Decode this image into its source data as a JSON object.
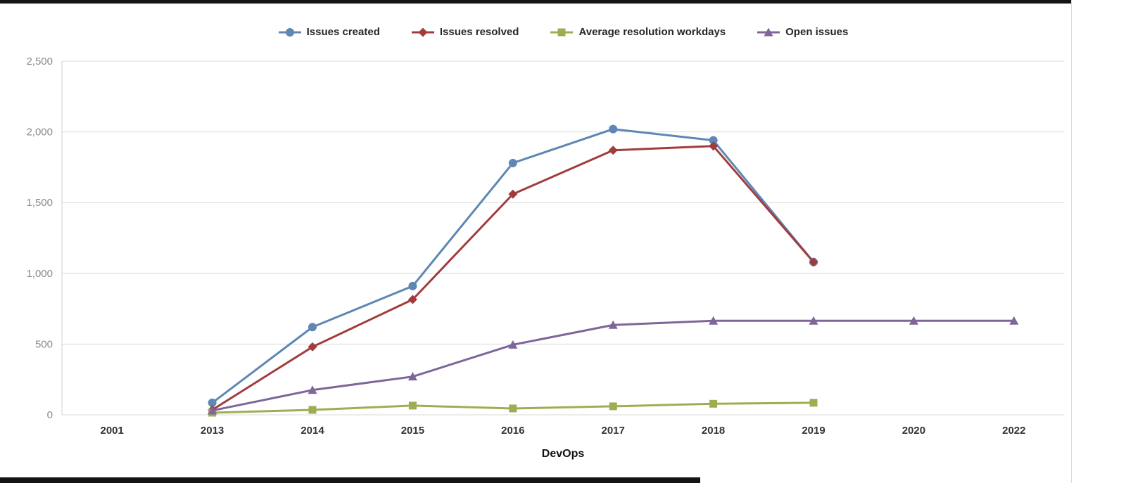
{
  "chart_data": {
    "type": "line",
    "xlabel": "DevOps",
    "ylim": [
      0,
      2500
    ],
    "ytick_interval": 500,
    "grid": true,
    "legend_position": "top",
    "categories": [
      "2001",
      "2013",
      "2014",
      "2015",
      "2016",
      "2017",
      "2018",
      "2019",
      "2020",
      "2022"
    ],
    "series": [
      {
        "name": "Issues created",
        "color": "#5e87b5",
        "marker": "circle",
        "values": [
          null,
          85,
          620,
          910,
          1780,
          2020,
          1940,
          1080,
          null,
          null
        ]
      },
      {
        "name": "Issues resolved",
        "color": "#a23c3c",
        "marker": "diamond",
        "values": [
          null,
          35,
          480,
          815,
          1560,
          1870,
          1900,
          1080,
          null,
          null
        ]
      },
      {
        "name": "Average resolution workdays",
        "color": "#9fad52",
        "marker": "square",
        "values": [
          null,
          15,
          35,
          65,
          45,
          60,
          78,
          85,
          null,
          null
        ]
      },
      {
        "name": "Open issues",
        "color": "#7e6699",
        "marker": "triangle",
        "values": [
          null,
          30,
          175,
          270,
          495,
          635,
          665,
          665,
          665,
          665
        ]
      }
    ]
  }
}
